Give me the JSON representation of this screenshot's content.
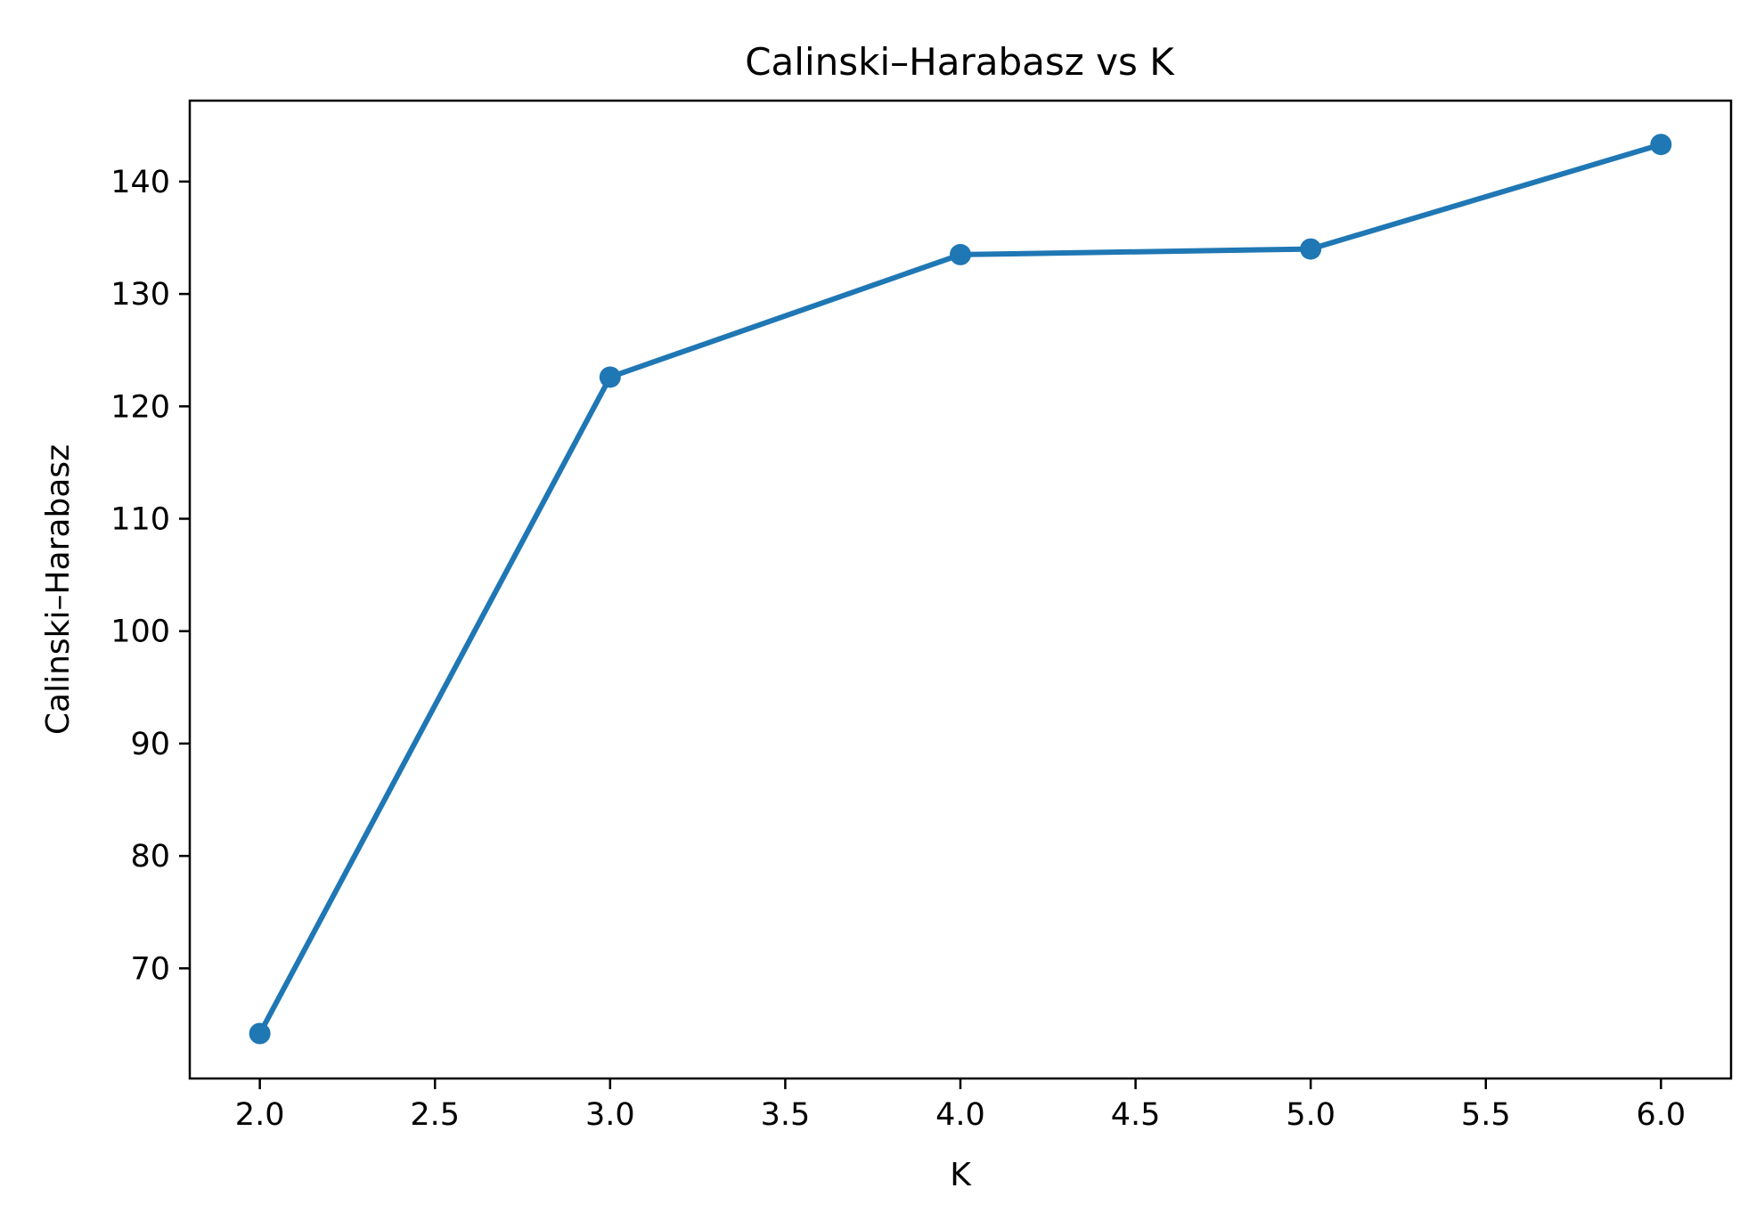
{
  "chart_data": {
    "type": "line",
    "title": "Calinski–Harabasz vs K",
    "xlabel": "K",
    "ylabel": "Calinski–Harabasz",
    "xlim": [
      1.8,
      6.2
    ],
    "ylim": [
      60.2,
      147.2
    ],
    "x_ticks": [
      "2.0",
      "2.5",
      "3.0",
      "3.5",
      "4.0",
      "4.5",
      "5.0",
      "5.5",
      "6.0"
    ],
    "x_tick_values": [
      2.0,
      2.5,
      3.0,
      3.5,
      4.0,
      4.5,
      5.0,
      5.5,
      6.0
    ],
    "y_ticks": [
      "70",
      "80",
      "90",
      "100",
      "110",
      "120",
      "130",
      "140"
    ],
    "y_tick_values": [
      70,
      80,
      90,
      100,
      110,
      120,
      130,
      140
    ],
    "grid": false,
    "legend": "none",
    "series": [
      {
        "color": "#1f77b4",
        "marker": "circle",
        "x": [
          2,
          3,
          4,
          5,
          6
        ],
        "y": [
          64.2,
          122.6,
          133.5,
          134.0,
          143.3
        ]
      }
    ]
  }
}
